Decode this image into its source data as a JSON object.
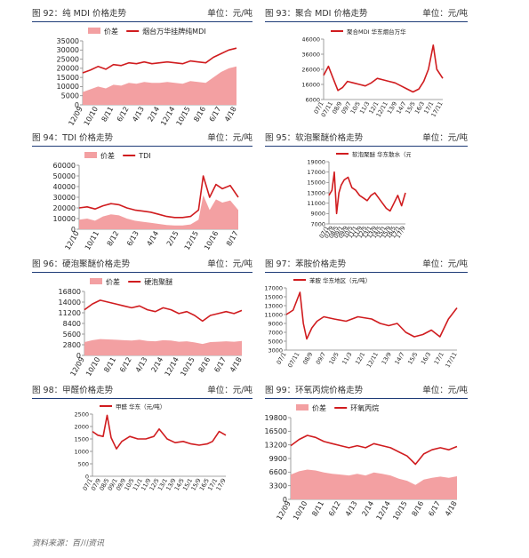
{
  "headers": [
    {
      "title": "图 92：纯 MDI 价格走势",
      "unit": "单位：元/吨"
    },
    {
      "title": "图 93：聚合 MDI 价格走势",
      "unit": "单位：元/吨"
    },
    {
      "title": "图 94：TDI 价格走势",
      "unit": "单位：元/吨"
    },
    {
      "title": "图 95：软泡聚醚价格走势",
      "unit": "单位：元/吨"
    },
    {
      "title": "图 96：硬泡聚醚价格走势",
      "unit": "单位：元/吨"
    },
    {
      "title": "图 97：苯胺价格走势",
      "unit": "单位：元/吨"
    },
    {
      "title": "图 98：甲醛价格走势",
      "unit": "单位：元/吨"
    },
    {
      "title": "图 99：环氧丙烷价格走势",
      "unit": "单位：元/吨"
    }
  ],
  "source": "资料来源：百川资讯",
  "colors": {
    "line": "#d01c1f",
    "area": "#f3a0a2",
    "rule": "#1f3c78"
  },
  "chart_data": [
    {
      "type": "line",
      "legend": [
        "价差",
        "烟台万华挂牌纯MDI"
      ],
      "yticks": [
        0,
        5000,
        10000,
        15000,
        20000,
        25000,
        30000,
        35000
      ],
      "ylim": [
        0,
        35000
      ],
      "xticks": [
        "12/09",
        "10/10",
        "8/11",
        "6/12",
        "4/13",
        "2/14",
        "12/14",
        "10/15",
        "8/16",
        "6/17",
        "4/18"
      ],
      "line": {
        "x": [
          0,
          0.05,
          0.1,
          0.15,
          0.2,
          0.25,
          0.3,
          0.35,
          0.4,
          0.45,
          0.5,
          0.55,
          0.6,
          0.65,
          0.7,
          0.75,
          0.8,
          0.85,
          0.9,
          0.95,
          1
        ],
        "y": [
          17500,
          19000,
          21000,
          19500,
          22000,
          21500,
          23000,
          22500,
          23500,
          22500,
          23000,
          23500,
          23000,
          22500,
          24000,
          23500,
          23000,
          26000,
          28000,
          30000,
          31000
        ]
      },
      "area": {
        "x": [
          0,
          0.05,
          0.1,
          0.15,
          0.2,
          0.25,
          0.3,
          0.35,
          0.4,
          0.45,
          0.5,
          0.55,
          0.6,
          0.65,
          0.7,
          0.75,
          0.8,
          0.85,
          0.9,
          0.95,
          1
        ],
        "y": [
          7000,
          8500,
          10000,
          9000,
          11000,
          10500,
          12000,
          11500,
          12500,
          12000,
          12000,
          12500,
          12000,
          11500,
          13000,
          12500,
          12000,
          15000,
          18000,
          20000,
          21000
        ]
      }
    },
    {
      "type": "line",
      "legend": [
        "聚合MDI 华东烟台万华"
      ],
      "yticks": [
        6000,
        16000,
        26000,
        36000,
        46000
      ],
      "ylim": [
        6000,
        46000
      ],
      "xticks": [
        "07/1",
        "07/11",
        "08/9",
        "09/7",
        "10/5",
        "11/3",
        "12/1",
        "12/11",
        "13/9",
        "14/7",
        "15/5",
        "16/3",
        "17/1",
        "17/11"
      ],
      "line": {
        "x": [
          0,
          0.04,
          0.08,
          0.12,
          0.16,
          0.2,
          0.25,
          0.3,
          0.35,
          0.4,
          0.45,
          0.5,
          0.55,
          0.6,
          0.65,
          0.7,
          0.75,
          0.8,
          0.84,
          0.88,
          0.92,
          0.95,
          1
        ],
        "y": [
          22000,
          28000,
          20000,
          12000,
          14000,
          18000,
          17000,
          16000,
          15000,
          17000,
          20000,
          19000,
          18000,
          17000,
          15000,
          13000,
          11000,
          13000,
          18000,
          26000,
          42000,
          26000,
          20000
        ]
      }
    },
    {
      "type": "line",
      "legend": [
        "价差",
        "TDI"
      ],
      "yticks": [
        0,
        10000,
        20000,
        30000,
        40000,
        50000,
        60000
      ],
      "ylim": [
        0,
        60000
      ],
      "xticks": [
        "12/10",
        "10/11",
        "8/12",
        "6/13",
        "4/14",
        "2/15",
        "12/15",
        "10/16",
        "8/17"
      ],
      "line": {
        "x": [
          0,
          0.05,
          0.1,
          0.15,
          0.2,
          0.25,
          0.3,
          0.35,
          0.4,
          0.45,
          0.5,
          0.55,
          0.6,
          0.65,
          0.7,
          0.75,
          0.78,
          0.82,
          0.86,
          0.9,
          0.95,
          1
        ],
        "y": [
          20000,
          21000,
          19000,
          22000,
          24000,
          23000,
          20000,
          18000,
          17000,
          16000,
          14000,
          12000,
          11000,
          11000,
          12000,
          18000,
          50000,
          30000,
          42000,
          38000,
          41000,
          30000
        ]
      },
      "area": {
        "x": [
          0,
          0.05,
          0.1,
          0.15,
          0.2,
          0.25,
          0.3,
          0.35,
          0.4,
          0.45,
          0.5,
          0.55,
          0.6,
          0.65,
          0.7,
          0.75,
          0.78,
          0.82,
          0.86,
          0.9,
          0.95,
          1
        ],
        "y": [
          9000,
          10000,
          8000,
          12000,
          14000,
          13000,
          10000,
          8000,
          7000,
          6000,
          5000,
          4000,
          3500,
          3500,
          4500,
          9000,
          32000,
          18000,
          28000,
          25000,
          27000,
          18000
        ]
      }
    },
    {
      "type": "line",
      "legend": [
        "软泡聚醚 华东散水（元/吨）"
      ],
      "yticks": [
        7000,
        9000,
        11000,
        13000,
        15000,
        17000,
        19000
      ],
      "ylim": [
        7000,
        19000
      ],
      "xticks": [
        "07/1",
        "07/9",
        "08/5",
        "09/1",
        "09/9",
        "10/5",
        "11/1",
        "11/9",
        "12/5",
        "13/1",
        "13/9",
        "14/5",
        "15/1",
        "15/9",
        "16/5",
        "17/1",
        "17/9"
      ],
      "line": {
        "x": [
          0,
          0.04,
          0.07,
          0.1,
          0.13,
          0.16,
          0.2,
          0.25,
          0.3,
          0.35,
          0.4,
          0.45,
          0.5,
          0.55,
          0.6,
          0.65,
          0.7,
          0.75,
          0.8,
          0.85,
          0.9,
          0.95,
          1
        ],
        "y": [
          12500,
          13500,
          17000,
          9000,
          13000,
          14500,
          15500,
          16000,
          14000,
          13500,
          12500,
          12000,
          11500,
          12500,
          13000,
          12000,
          11000,
          10000,
          9500,
          11000,
          12500,
          10500,
          13000
        ]
      }
    },
    {
      "type": "line",
      "legend": [
        "价差",
        "硬泡聚醚"
      ],
      "yticks": [
        0,
        2800,
        5600,
        8400,
        11200,
        14000,
        16800
      ],
      "ylim": [
        0,
        16800
      ],
      "xticks": [
        "12/09",
        "10/10",
        "8/11",
        "6/12",
        "4/13",
        "2/14",
        "12/14",
        "10/15",
        "8/16",
        "6/17",
        "4/18"
      ],
      "line": {
        "x": [
          0,
          0.05,
          0.1,
          0.15,
          0.2,
          0.25,
          0.3,
          0.35,
          0.4,
          0.45,
          0.5,
          0.55,
          0.6,
          0.65,
          0.7,
          0.75,
          0.8,
          0.85,
          0.9,
          0.95,
          1
        ],
        "y": [
          12000,
          13500,
          14500,
          14000,
          13500,
          13000,
          12500,
          13000,
          12000,
          11500,
          12500,
          12000,
          11000,
          11500,
          10500,
          9000,
          10500,
          11000,
          11500,
          11000,
          11800
        ]
      },
      "area": {
        "x": [
          0,
          0.05,
          0.1,
          0.15,
          0.2,
          0.25,
          0.3,
          0.35,
          0.4,
          0.45,
          0.5,
          0.55,
          0.6,
          0.65,
          0.7,
          0.75,
          0.8,
          0.85,
          0.9,
          0.95,
          1
        ],
        "y": [
          3500,
          4000,
          4300,
          4200,
          4100,
          4000,
          3900,
          4100,
          3800,
          3700,
          4000,
          3900,
          3600,
          3700,
          3400,
          3000,
          3500,
          3600,
          3700,
          3600,
          3800
        ]
      }
    },
    {
      "type": "line",
      "legend": [
        "苯胺 华东地区（元/吨）"
      ],
      "yticks": [
        3000,
        5000,
        7000,
        9000,
        11000,
        13000,
        15000,
        17000
      ],
      "ylim": [
        3000,
        17000
      ],
      "xticks": [
        "07/1",
        "07/11",
        "08/9",
        "09/7",
        "10/5",
        "11/3",
        "12/1",
        "12/11",
        "13/9",
        "14/7",
        "15/5",
        "16/3",
        "17/1",
        "17/11"
      ],
      "line": {
        "x": [
          0,
          0.04,
          0.08,
          0.1,
          0.12,
          0.15,
          0.18,
          0.22,
          0.28,
          0.35,
          0.42,
          0.5,
          0.55,
          0.6,
          0.65,
          0.7,
          0.75,
          0.8,
          0.85,
          0.9,
          0.95,
          1
        ],
        "y": [
          11000,
          12000,
          16000,
          9000,
          5500,
          8000,
          9500,
          10500,
          10000,
          9500,
          10500,
          10000,
          9000,
          8500,
          9000,
          7000,
          6000,
          6500,
          7500,
          6000,
          10000,
          12500
        ]
      }
    },
    {
      "type": "line",
      "legend": [
        "甲醛 华东（元/吨）"
      ],
      "yticks": [
        0,
        500,
        1000,
        1500,
        2000,
        2500
      ],
      "ylim": [
        0,
        2500
      ],
      "xticks": [
        "07/1",
        "07/9",
        "08/5",
        "09/1",
        "09/9",
        "10/5",
        "11/1",
        "11/9",
        "12/5",
        "13/1",
        "13/9",
        "14/5",
        "15/1",
        "15/9",
        "16/5",
        "17/1",
        "17/9"
      ],
      "line": {
        "x": [
          0,
          0.04,
          0.08,
          0.11,
          0.14,
          0.18,
          0.22,
          0.28,
          0.34,
          0.4,
          0.46,
          0.5,
          0.56,
          0.62,
          0.68,
          0.74,
          0.8,
          0.86,
          0.9,
          0.95,
          1
        ],
        "y": [
          1800,
          1650,
          1600,
          2450,
          1550,
          1100,
          1400,
          1600,
          1500,
          1500,
          1600,
          1900,
          1500,
          1350,
          1400,
          1300,
          1250,
          1300,
          1400,
          1800,
          1650
        ]
      }
    },
    {
      "type": "line",
      "legend": [
        "价差",
        "环氧丙烷"
      ],
      "yticks": [
        0,
        3300,
        6600,
        9900,
        13200,
        16500,
        19800
      ],
      "ylim": [
        0,
        19800
      ],
      "xticks": [
        "12/09",
        "10/10",
        "8/11",
        "6/12",
        "4/13",
        "2/14",
        "12/14",
        "10/15",
        "8/16",
        "6/17",
        "4/18"
      ],
      "line": {
        "x": [
          0,
          0.05,
          0.1,
          0.15,
          0.2,
          0.25,
          0.3,
          0.35,
          0.4,
          0.45,
          0.5,
          0.55,
          0.6,
          0.65,
          0.7,
          0.75,
          0.8,
          0.85,
          0.9,
          0.95,
          1
        ],
        "y": [
          13000,
          14500,
          15500,
          15000,
          14000,
          13500,
          13000,
          12500,
          13000,
          12500,
          13500,
          13000,
          12500,
          11500,
          10500,
          8500,
          11000,
          12000,
          12500,
          12000,
          12800
        ]
      },
      "area": {
        "x": [
          0,
          0.05,
          0.1,
          0.15,
          0.2,
          0.25,
          0.3,
          0.35,
          0.4,
          0.45,
          0.5,
          0.55,
          0.6,
          0.65,
          0.7,
          0.75,
          0.8,
          0.85,
          0.9,
          0.95,
          1
        ],
        "y": [
          6000,
          6800,
          7200,
          7000,
          6500,
          6200,
          6000,
          5800,
          6200,
          5800,
          6500,
          6200,
          5800,
          5000,
          4500,
          3500,
          4800,
          5200,
          5500,
          5200,
          5600
        ]
      }
    }
  ]
}
